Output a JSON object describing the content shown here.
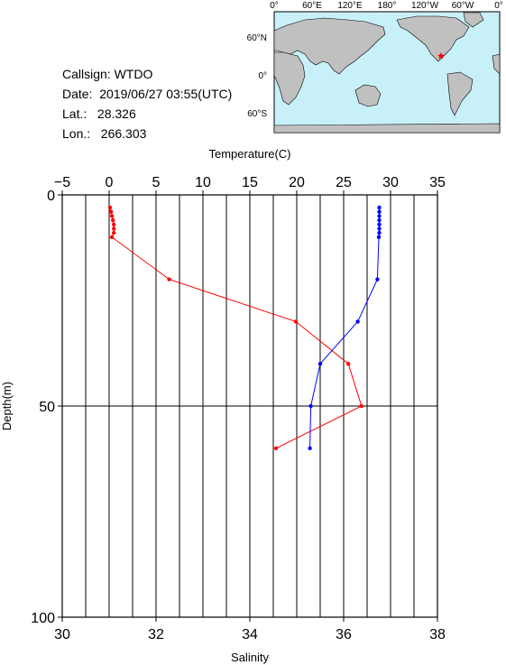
{
  "station": {
    "callsign": "Callsign: WTDO",
    "date": "Date:  2019/06/27 03:55(UTC)",
    "lat": "Lat.:   28.326",
    "lon": "Lon.:   266.303"
  },
  "map": {
    "top_ticks": [
      "0°",
      "60°E",
      "120°E",
      "180°",
      "120°W",
      "60°W",
      "0°"
    ],
    "left_ticks": [
      "60°N",
      "0°",
      "60°S"
    ],
    "ocean_color": "#c8f0f8",
    "land_color": "#c0c0c0",
    "marker_color": "#ff0000",
    "marker_lon_east": 266.303,
    "marker_lat": 28.326
  },
  "chart_data": {
    "type": "line",
    "top_axis_label": "Temperature(C)",
    "bottom_axis_label": "Salinity",
    "left_axis_label": "Depth(m)",
    "temperature_range": [
      -5,
      35
    ],
    "temperature_ticks": [
      "−5",
      "0",
      "5",
      "10",
      "15",
      "20",
      "25",
      "30",
      "35"
    ],
    "salinity_range": [
      30,
      38
    ],
    "salinity_ticks": [
      "30",
      "32",
      "34",
      "36",
      "38"
    ],
    "depth_range": [
      0,
      100
    ],
    "depth_ticks": [
      "0",
      "50",
      "100"
    ],
    "grid": true,
    "series": [
      {
        "color": "#ff0000",
        "axis": "temperature",
        "points": [
          {
            "value": 0.1,
            "depth": 3
          },
          {
            "value": 0.2,
            "depth": 4
          },
          {
            "value": 0.3,
            "depth": 5
          },
          {
            "value": 0.4,
            "depth": 6
          },
          {
            "value": 0.5,
            "depth": 7
          },
          {
            "value": 0.5,
            "depth": 8
          },
          {
            "value": 0.5,
            "depth": 9
          },
          {
            "value": 0.3,
            "depth": 10
          },
          {
            "value": 6.4,
            "depth": 20
          },
          {
            "value": 19.9,
            "depth": 30
          },
          {
            "value": 25.5,
            "depth": 40
          },
          {
            "value": 26.9,
            "depth": 50
          },
          {
            "value": 17.8,
            "depth": 60
          }
        ]
      },
      {
        "color": "#0000ff",
        "axis": "salinity",
        "points": [
          {
            "value": 36.76,
            "depth": 3
          },
          {
            "value": 36.76,
            "depth": 4
          },
          {
            "value": 36.76,
            "depth": 5
          },
          {
            "value": 36.76,
            "depth": 6
          },
          {
            "value": 36.76,
            "depth": 7
          },
          {
            "value": 36.76,
            "depth": 8
          },
          {
            "value": 36.76,
            "depth": 9
          },
          {
            "value": 36.75,
            "depth": 10
          },
          {
            "value": 36.72,
            "depth": 20
          },
          {
            "value": 36.3,
            "depth": 30
          },
          {
            "value": 35.5,
            "depth": 40
          },
          {
            "value": 35.3,
            "depth": 50
          },
          {
            "value": 35.28,
            "depth": 60
          }
        ]
      }
    ]
  }
}
